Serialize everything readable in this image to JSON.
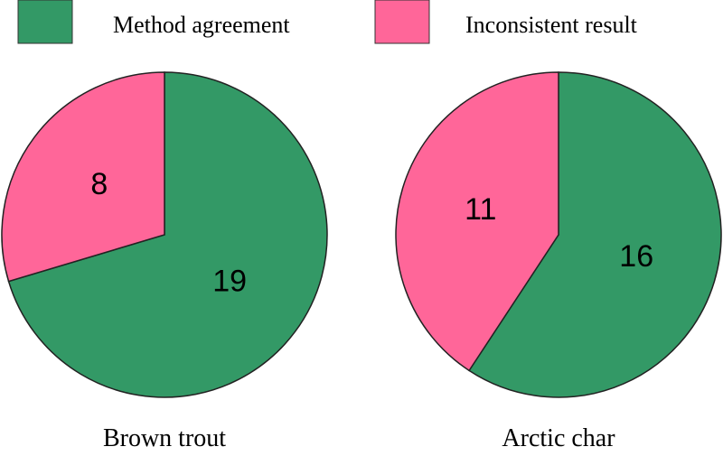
{
  "chart_data": [
    {
      "type": "pie",
      "title": "Brown trout",
      "categories": [
        "Method agreement",
        "Inconsistent result"
      ],
      "values": [
        19,
        8
      ],
      "colors": [
        "#339966",
        "#ff6699"
      ]
    },
    {
      "type": "pie",
      "title": "Arctic char",
      "categories": [
        "Method agreement",
        "Inconsistent result"
      ],
      "values": [
        16,
        11
      ],
      "colors": [
        "#339966",
        "#ff6699"
      ]
    }
  ]
}
